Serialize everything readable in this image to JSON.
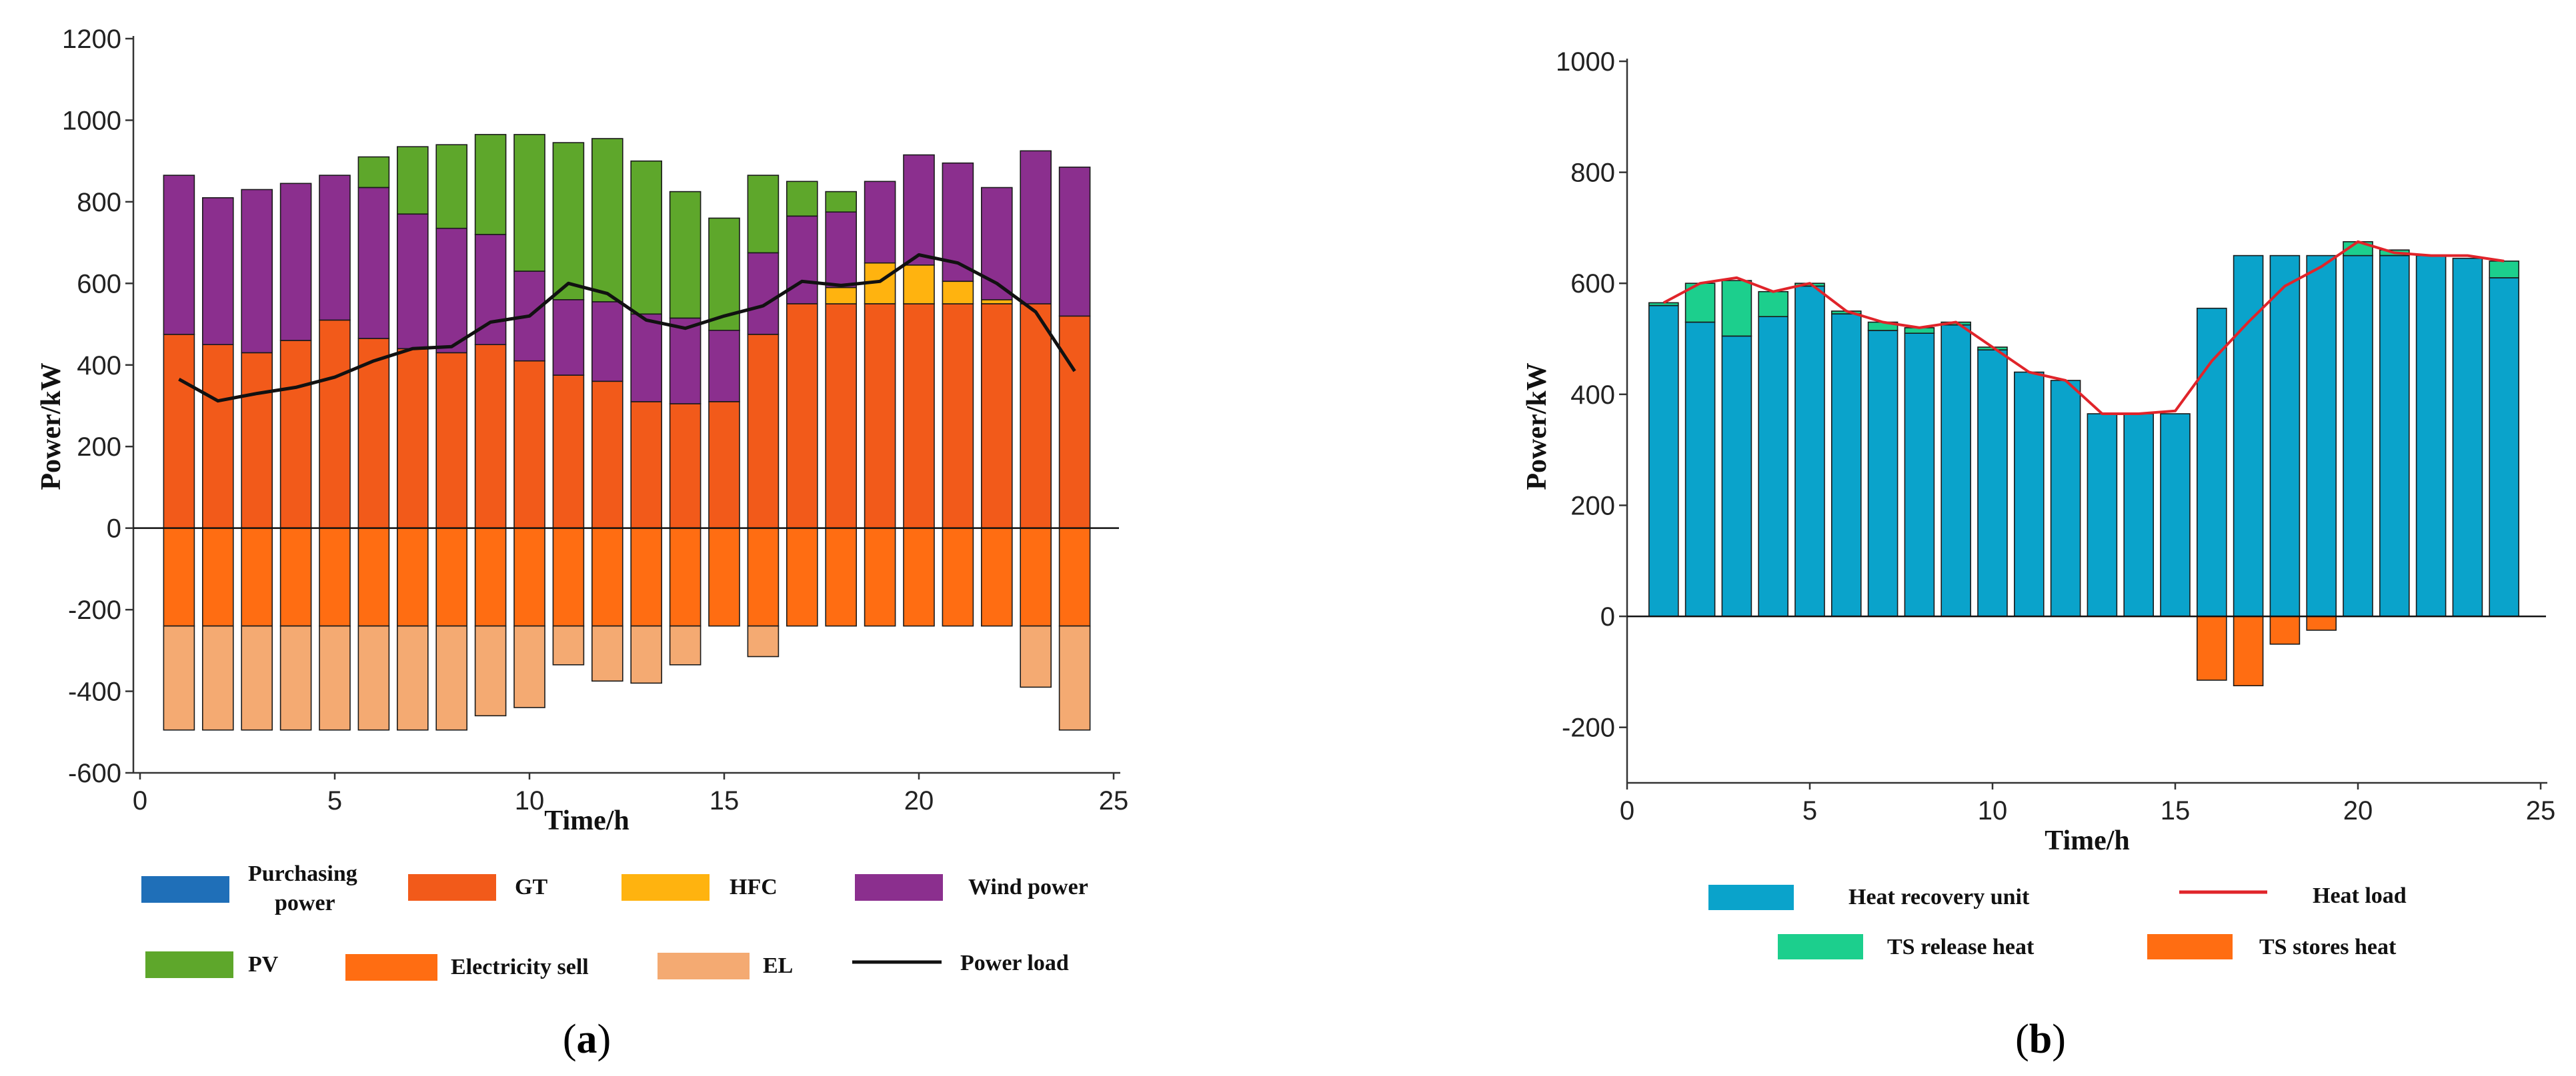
{
  "chart_data": [
    {
      "panel": "(a)",
      "type": "bar",
      "stacked": true,
      "xlabel": "Time/h",
      "ylabel": "Power/kW",
      "xlim": [
        0,
        25
      ],
      "ylim": [
        -600,
        1200
      ],
      "xticks": [
        0,
        5,
        10,
        15,
        20,
        25
      ],
      "yticks": [
        -600,
        -400,
        -200,
        0,
        200,
        400,
        600,
        800,
        1000,
        1200
      ],
      "x": [
        1,
        2,
        3,
        4,
        5,
        6,
        7,
        8,
        9,
        10,
        11,
        12,
        13,
        14,
        15,
        16,
        17,
        18,
        19,
        20,
        21,
        22,
        23,
        24
      ],
      "series": [
        {
          "name": "Purchasing power",
          "color": "#1f6fb8",
          "values": [
            0,
            0,
            0,
            0,
            0,
            0,
            0,
            0,
            0,
            0,
            0,
            0,
            0,
            0,
            0,
            0,
            0,
            0,
            0,
            0,
            0,
            0,
            0,
            0
          ]
        },
        {
          "name": "GT",
          "color": "#f25a1a",
          "values": [
            475,
            450,
            430,
            460,
            510,
            465,
            440,
            430,
            450,
            410,
            375,
            360,
            310,
            305,
            310,
            475,
            550,
            550,
            550,
            550,
            550,
            550,
            550,
            520
          ]
        },
        {
          "name": "HFC",
          "color": "#ffb30f",
          "values": [
            0,
            0,
            0,
            0,
            0,
            0,
            0,
            0,
            0,
            0,
            0,
            0,
            0,
            0,
            0,
            0,
            0,
            40,
            100,
            95,
            55,
            10,
            0,
            0
          ]
        },
        {
          "name": "Wind power",
          "color": "#8b2f8e",
          "values": [
            390,
            360,
            400,
            385,
            355,
            370,
            330,
            305,
            270,
            220,
            185,
            195,
            215,
            210,
            175,
            200,
            215,
            185,
            200,
            270,
            290,
            275,
            375,
            365
          ]
        },
        {
          "name": "PV",
          "color": "#5ea72b",
          "values": [
            0,
            0,
            0,
            0,
            0,
            75,
            165,
            205,
            245,
            335,
            385,
            400,
            375,
            310,
            275,
            190,
            85,
            50,
            0,
            0,
            0,
            0,
            0,
            0
          ]
        },
        {
          "name": "Electricity sell",
          "color": "#ff6d12",
          "values": [
            -240,
            -240,
            -240,
            -240,
            -240,
            -240,
            -240,
            -240,
            -240,
            -240,
            -240,
            -240,
            -240,
            -240,
            -240,
            -240,
            -240,
            -240,
            -240,
            -240,
            -240,
            -240,
            -240,
            -240
          ]
        },
        {
          "name": "EL",
          "color": "#f4aa72",
          "values": [
            -255,
            -255,
            -255,
            -255,
            -255,
            -255,
            -255,
            -255,
            -220,
            -200,
            -95,
            -135,
            -140,
            -95,
            0,
            -75,
            0,
            0,
            0,
            0,
            0,
            0,
            -150,
            -255
          ]
        }
      ],
      "lines": [
        {
          "name": "Power load",
          "color": "#111111",
          "values": [
            365,
            312,
            330,
            345,
            370,
            410,
            440,
            445,
            505,
            520,
            600,
            575,
            510,
            490,
            520,
            545,
            605,
            595,
            605,
            670,
            650,
            600,
            530,
            385
          ]
        }
      ],
      "legend": [
        "Purchasing power",
        "GT",
        "HFC",
        "Wind power",
        "PV",
        "Electricity sell",
        "EL",
        "Power load"
      ]
    },
    {
      "panel": "(b)",
      "type": "bar",
      "stacked": true,
      "xlabel": "Time/h",
      "ylabel": "Power/kW",
      "xlim": [
        0,
        25
      ],
      "ylim": [
        -300,
        1000
      ],
      "xticks": [
        0,
        5,
        10,
        15,
        20,
        25
      ],
      "yticks": [
        -200,
        0,
        200,
        400,
        600,
        800,
        1000
      ],
      "x": [
        1,
        2,
        3,
        4,
        5,
        6,
        7,
        8,
        9,
        10,
        11,
        12,
        13,
        14,
        15,
        16,
        17,
        18,
        19,
        20,
        21,
        22,
        23,
        24
      ],
      "series": [
        {
          "name": "Heat recovery unit",
          "color": "#0aa3cb",
          "values": [
            560,
            530,
            505,
            540,
            595,
            545,
            515,
            510,
            525,
            480,
            440,
            425,
            365,
            365,
            365,
            555,
            650,
            650,
            650,
            650,
            650,
            650,
            645,
            610
          ]
        },
        {
          "name": "TS release heat",
          "color": "#1ccf8d",
          "values": [
            5,
            70,
            100,
            45,
            5,
            5,
            15,
            10,
            5,
            5,
            0,
            0,
            0,
            0,
            0,
            0,
            0,
            0,
            0,
            25,
            10,
            0,
            0,
            30
          ]
        },
        {
          "name": "TS stores heat",
          "color": "#ff6d12",
          "values": [
            0,
            0,
            0,
            0,
            0,
            0,
            0,
            0,
            0,
            0,
            0,
            0,
            0,
            0,
            0,
            -115,
            -125,
            -50,
            -25,
            0,
            0,
            0,
            0,
            0
          ]
        }
      ],
      "lines": [
        {
          "name": "Heat load",
          "color": "#e0242a",
          "values": [
            565,
            600,
            610,
            585,
            600,
            550,
            530,
            520,
            530,
            485,
            440,
            425,
            365,
            365,
            370,
            460,
            530,
            595,
            630,
            675,
            655,
            650,
            650,
            640
          ]
        }
      ],
      "legend": [
        "Heat recovery unit",
        "Heat load",
        "TS release heat",
        "TS stores heat"
      ]
    }
  ],
  "legend_labels": {
    "a": {
      "purchasing_line1": "Purchasing",
      "purchasing_line2": "power",
      "gt": "GT",
      "hfc": "HFC",
      "wind": "Wind power",
      "pv": "PV",
      "sell": "Electricity sell",
      "el": "EL",
      "load": "Power load"
    },
    "b": {
      "hru": "Heat recovery unit",
      "heat_load": "Heat load",
      "ts_release": "TS release heat",
      "ts_store": "TS stores heat"
    }
  },
  "panel_labels": {
    "a_open": "(",
    "a_letter": "a",
    "a_close": ")",
    "b_open": "(",
    "b_letter": "b",
    "b_close": ")"
  }
}
